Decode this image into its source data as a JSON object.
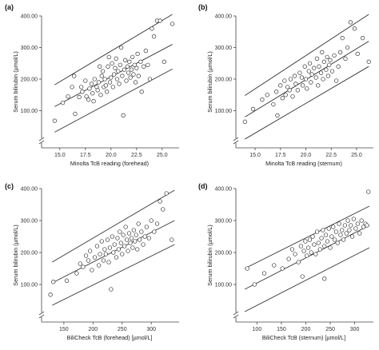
{
  "chart_data": [
    {
      "type": "scatter",
      "panel_label": "(a)",
      "xlabel": "Minolta TcB reading (forehead)",
      "ylabel": "Serum bilirubin (µmol/L)",
      "xlim": [
        14.0,
        26.5
      ],
      "ylim": [
        0,
        400
      ],
      "y_axis_break": true,
      "x_ticks": [
        "15.0",
        "17.5",
        "20.0",
        "22.5",
        "25.0"
      ],
      "x_tick_values": [
        15.0,
        17.5,
        20.0,
        22.5,
        25.0
      ],
      "y_ticks": [
        "100.00",
        "200.00",
        "300.00",
        "400.00"
      ],
      "y_tick_values": [
        100,
        200,
        300,
        400
      ],
      "regression_lines": [
        {
          "x": [
            14.5,
            26.0
          ],
          "y": [
            182,
            405
          ]
        },
        {
          "x": [
            14.5,
            26.0
          ],
          "y": [
            113,
            310
          ]
        },
        {
          "x": [
            14.5,
            26.0
          ],
          "y": [
            32,
            232
          ]
        }
      ],
      "points": [
        [
          14.5,
          68
        ],
        [
          15.3,
          125
        ],
        [
          15.8,
          145
        ],
        [
          16.2,
          175
        ],
        [
          16.4,
          210
        ],
        [
          16.5,
          90
        ],
        [
          16.9,
          143
        ],
        [
          17.1,
          175
        ],
        [
          17.2,
          160
        ],
        [
          17.5,
          195
        ],
        [
          17.6,
          145
        ],
        [
          17.8,
          135
        ],
        [
          17.9,
          170
        ],
        [
          18.1,
          185
        ],
        [
          18.2,
          155
        ],
        [
          18.3,
          130
        ],
        [
          18.4,
          200
        ],
        [
          18.6,
          175
        ],
        [
          18.7,
          165
        ],
        [
          18.8,
          190
        ],
        [
          18.9,
          240
        ],
        [
          19.0,
          150
        ],
        [
          19.1,
          210
        ],
        [
          19.2,
          225
        ],
        [
          19.3,
          175
        ],
        [
          19.4,
          200
        ],
        [
          19.5,
          180
        ],
        [
          19.6,
          160
        ],
        [
          19.7,
          240
        ],
        [
          19.8,
          270
        ],
        [
          19.9,
          190
        ],
        [
          20.0,
          205
        ],
        [
          20.1,
          250
        ],
        [
          20.2,
          175
        ],
        [
          20.3,
          215
        ],
        [
          20.4,
          235
        ],
        [
          20.5,
          265
        ],
        [
          20.6,
          200
        ],
        [
          20.7,
          225
        ],
        [
          20.8,
          185
        ],
        [
          20.9,
          245
        ],
        [
          21.0,
          300
        ],
        [
          21.1,
          210
        ],
        [
          21.2,
          85
        ],
        [
          21.3,
          230
        ],
        [
          21.4,
          260
        ],
        [
          21.5,
          195
        ],
        [
          21.6,
          240
        ],
        [
          21.7,
          220
        ],
        [
          21.8,
          255
        ],
        [
          21.9,
          205
        ],
        [
          22.0,
          230
        ],
        [
          22.1,
          270
        ],
        [
          22.2,
          215
        ],
        [
          22.3,
          245
        ],
        [
          22.4,
          190
        ],
        [
          22.5,
          235
        ],
        [
          22.6,
          280
        ],
        [
          22.7,
          210
        ],
        [
          22.9,
          255
        ],
        [
          23.0,
          160
        ],
        [
          23.2,
          240
        ],
        [
          23.4,
          290
        ],
        [
          23.6,
          245
        ],
        [
          23.8,
          200
        ],
        [
          24.0,
          360
        ],
        [
          24.2,
          335
        ],
        [
          24.5,
          385
        ],
        [
          24.8,
          385
        ],
        [
          25.2,
          255
        ],
        [
          26.0,
          375
        ]
      ]
    },
    {
      "type": "scatter",
      "panel_label": "(b)",
      "xlabel": "Minolta TcB reading (sternum)",
      "ylabel": "Serum bilirubin (µmol/L)",
      "xlim": [
        13.5,
        26.5
      ],
      "ylim": [
        0,
        400
      ],
      "y_axis_break": true,
      "x_ticks": [
        "15.0",
        "17.5",
        "20.0",
        "22.5",
        "25.0"
      ],
      "x_tick_values": [
        15.0,
        17.5,
        20.0,
        22.5,
        25.0
      ],
      "y_ticks": [
        "100.00",
        "200.00",
        "300.00",
        "400.00"
      ],
      "y_tick_values": [
        100,
        200,
        300,
        400
      ],
      "regression_lines": [
        {
          "x": [
            14.0,
            26.2
          ],
          "y": [
            148,
            405
          ]
        },
        {
          "x": [
            14.0,
            26.2
          ],
          "y": [
            80,
            320
          ]
        },
        {
          "x": [
            14.0,
            26.2
          ],
          "y": [
            10,
            240
          ]
        }
      ],
      "points": [
        [
          14.0,
          65
        ],
        [
          14.8,
          105
        ],
        [
          15.7,
          135
        ],
        [
          16.2,
          150
        ],
        [
          16.8,
          120
        ],
        [
          17.1,
          160
        ],
        [
          17.2,
          85
        ],
        [
          17.5,
          180
        ],
        [
          17.7,
          140
        ],
        [
          17.9,
          195
        ],
        [
          18.0,
          150
        ],
        [
          18.2,
          175
        ],
        [
          18.4,
          165
        ],
        [
          18.5,
          200
        ],
        [
          18.7,
          145
        ],
        [
          18.9,
          210
        ],
        [
          19.0,
          185
        ],
        [
          19.2,
          165
        ],
        [
          19.4,
          220
        ],
        [
          19.6,
          205
        ],
        [
          19.7,
          180
        ],
        [
          19.9,
          240
        ],
        [
          20.0,
          200
        ],
        [
          20.1,
          170
        ],
        [
          20.3,
          225
        ],
        [
          20.4,
          250
        ],
        [
          20.5,
          190
        ],
        [
          20.6,
          215
        ],
        [
          20.8,
          235
        ],
        [
          21.0,
          205
        ],
        [
          21.1,
          265
        ],
        [
          21.2,
          180
        ],
        [
          21.3,
          240
        ],
        [
          21.5,
          220
        ],
        [
          21.6,
          285
        ],
        [
          21.7,
          200
        ],
        [
          21.8,
          255
        ],
        [
          22.0,
          230
        ],
        [
          22.1,
          270
        ],
        [
          22.2,
          210
        ],
        [
          22.3,
          245
        ],
        [
          22.4,
          260
        ],
        [
          22.6,
          225
        ],
        [
          22.8,
          275
        ],
        [
          23.0,
          195
        ],
        [
          23.2,
          240
        ],
        [
          23.4,
          285
        ],
        [
          23.6,
          330
        ],
        [
          23.9,
          265
        ],
        [
          24.1,
          300
        ],
        [
          24.4,
          380
        ],
        [
          24.8,
          360
        ],
        [
          25.1,
          280
        ],
        [
          25.6,
          330
        ],
        [
          26.2,
          255
        ]
      ]
    },
    {
      "type": "scatter",
      "panel_label": "(c)",
      "xlabel": "BiliCheck TcB (forehead) [µmol/L]",
      "ylabel": "Serum bilirubin (µmol/L)",
      "xlim": [
        120,
        345
      ],
      "ylim": [
        0,
        400
      ],
      "y_axis_break": true,
      "x_ticks": [
        "150",
        "200",
        "250",
        "300"
      ],
      "x_tick_values": [
        150,
        200,
        250,
        300
      ],
      "y_ticks": [
        "100.00",
        "200.00",
        "300.00",
        "400.00"
      ],
      "y_tick_values": [
        100,
        200,
        300,
        400
      ],
      "regression_lines": [
        {
          "x": [
            130,
            340
          ],
          "y": [
            170,
            395
          ]
        },
        {
          "x": [
            130,
            340
          ],
          "y": [
            105,
            300
          ]
        },
        {
          "x": [
            130,
            340
          ],
          "y": [
            35,
            225
          ]
        }
      ],
      "points": [
        [
          127,
          68
        ],
        [
          132,
          108
        ],
        [
          155,
          112
        ],
        [
          172,
          135
        ],
        [
          178,
          165
        ],
        [
          183,
          155
        ],
        [
          188,
          190
        ],
        [
          192,
          175
        ],
        [
          195,
          205
        ],
        [
          198,
          145
        ],
        [
          203,
          185
        ],
        [
          207,
          220
        ],
        [
          210,
          160
        ],
        [
          212,
          195
        ],
        [
          215,
          235
        ],
        [
          218,
          175
        ],
        [
          220,
          210
        ],
        [
          222,
          195
        ],
        [
          225,
          240
        ],
        [
          227,
          170
        ],
        [
          229,
          215
        ],
        [
          231,
          85
        ],
        [
          233,
          250
        ],
        [
          235,
          200
        ],
        [
          237,
          225
        ],
        [
          240,
          185
        ],
        [
          242,
          245
        ],
        [
          244,
          210
        ],
        [
          246,
          265
        ],
        [
          248,
          230
        ],
        [
          250,
          195
        ],
        [
          252,
          255
        ],
        [
          254,
          220
        ],
        [
          256,
          280
        ],
        [
          258,
          240
        ],
        [
          260,
          205
        ],
        [
          262,
          260
        ],
        [
          264,
          230
        ],
        [
          266,
          245
        ],
        [
          268,
          215
        ],
        [
          270,
          270
        ],
        [
          272,
          235
        ],
        [
          274,
          255
        ],
        [
          276,
          210
        ],
        [
          278,
          290
        ],
        [
          280,
          240
        ],
        [
          283,
          265
        ],
        [
          286,
          225
        ],
        [
          289,
          250
        ],
        [
          292,
          280
        ],
        [
          296,
          245
        ],
        [
          300,
          300
        ],
        [
          305,
          265
        ],
        [
          310,
          290
        ],
        [
          315,
          360
        ],
        [
          320,
          335
        ],
        [
          326,
          385
        ],
        [
          335,
          240
        ]
      ]
    },
    {
      "type": "scatter",
      "panel_label": "(d)",
      "xlabel": "BiliCheck TcB (sternum) [µmol/L]",
      "ylabel": "Serum bilirubin (µmol/L)",
      "xlim": [
        65,
        335
      ],
      "ylim": [
        0,
        400
      ],
      "y_axis_break": true,
      "x_ticks": [
        "100",
        "150",
        "200",
        "250",
        "300"
      ],
      "x_tick_values": [
        100,
        150,
        200,
        250,
        300
      ],
      "y_ticks": [
        "100.00",
        "200.00",
        "300.00",
        "400.00"
      ],
      "y_tick_values": [
        100,
        200,
        300,
        400
      ],
      "regression_lines": [
        {
          "x": [
            75,
            330
          ],
          "y": [
            150,
            345
          ]
        },
        {
          "x": [
            75,
            330
          ],
          "y": [
            85,
            285
          ]
        },
        {
          "x": [
            75,
            330
          ],
          "y": [
            15,
            215
          ]
        }
      ],
      "points": [
        [
          80,
          150
        ],
        [
          95,
          100
        ],
        [
          115,
          135
        ],
        [
          135,
          160
        ],
        [
          152,
          150
        ],
        [
          165,
          180
        ],
        [
          172,
          210
        ],
        [
          178,
          195
        ],
        [
          185,
          170
        ],
        [
          190,
          220
        ],
        [
          193,
          125
        ],
        [
          196,
          205
        ],
        [
          199,
          235
        ],
        [
          202,
          190
        ],
        [
          205,
          215
        ],
        [
          208,
          240
        ],
        [
          211,
          200
        ],
        [
          214,
          250
        ],
        [
          217,
          225
        ],
        [
          220,
          195
        ],
        [
          223,
          265
        ],
        [
          226,
          230
        ],
        [
          229,
          210
        ],
        [
          232,
          245
        ],
        [
          235,
          270
        ],
        [
          238,
          220
        ],
        [
          241,
          255
        ],
        [
          244,
          235
        ],
        [
          247,
          275
        ],
        [
          250,
          215
        ],
        [
          253,
          250
        ],
        [
          256,
          280
        ],
        [
          259,
          240
        ],
        [
          262,
          265
        ],
        [
          265,
          230
        ],
        [
          268,
          290
        ],
        [
          271,
          255
        ],
        [
          274,
          270
        ],
        [
          277,
          240
        ],
        [
          280,
          285
        ],
        [
          283,
          260
        ],
        [
          286,
          300
        ],
        [
          289,
          270
        ],
        [
          292,
          285
        ],
        [
          295,
          250
        ],
        [
          298,
          305
        ],
        [
          302,
          275
        ],
        [
          306,
          290
        ],
        [
          310,
          260
        ],
        [
          314,
          300
        ],
        [
          318,
          280
        ],
        [
          322,
          290
        ],
        [
          325,
          285
        ],
        [
          328,
          390
        ],
        [
          238,
          118
        ]
      ]
    }
  ]
}
